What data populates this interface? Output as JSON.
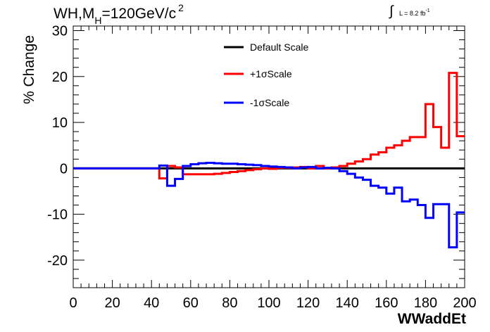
{
  "chart_data": {
    "type": "line",
    "title_text": "WH,M",
    "title_sub": "H",
    "title_rest": "=120GeV/c",
    "title_sup": "2",
    "lumi_text": "L = 8.2 fb",
    "lumi_sup": "-1",
    "xlabel": "WWaddEt",
    "ylabel": "% Change",
    "xlim": [
      0,
      200
    ],
    "ylim": [
      -26,
      31
    ],
    "xticks": [
      0,
      20,
      40,
      60,
      80,
      100,
      120,
      140,
      160,
      180,
      200
    ],
    "yticks": [
      -20,
      -10,
      0,
      10,
      20,
      30
    ],
    "grid": false,
    "legend_position": "top-center",
    "x_edges": [
      0,
      4,
      8,
      12,
      16,
      20,
      24,
      28,
      32,
      36,
      40,
      44,
      48,
      52,
      56,
      60,
      64,
      68,
      72,
      76,
      80,
      84,
      88,
      92,
      96,
      100,
      104,
      108,
      112,
      116,
      120,
      124,
      128,
      132,
      136,
      140,
      144,
      148,
      152,
      156,
      160,
      164,
      168,
      172,
      176,
      180,
      184,
      188,
      192,
      196,
      200
    ],
    "series": [
      {
        "name": "Default Scale",
        "color": "#000000",
        "values": [
          0,
          0,
          0,
          0,
          0,
          0,
          0,
          0,
          0,
          0,
          0,
          0,
          0,
          0,
          0,
          0,
          0,
          0,
          0,
          0,
          0,
          0,
          0,
          0,
          0,
          0,
          0,
          0,
          0,
          0,
          0,
          0,
          0,
          0,
          0,
          0,
          0,
          0,
          0,
          0,
          0,
          0,
          0,
          0,
          0,
          0,
          0,
          0,
          0,
          0
        ]
      },
      {
        "name": "+1σScale",
        "color": "#ff0000",
        "values": [
          0,
          0,
          0,
          0,
          0,
          0,
          0,
          0,
          0,
          0,
          0,
          -2.2,
          0.5,
          0.2,
          -1.3,
          -1.3,
          -1.3,
          -1.3,
          -1.2,
          -1.0,
          -0.8,
          -0.6,
          -0.4,
          -0.2,
          0,
          -0.1,
          0.1,
          0.1,
          0.2,
          0.3,
          0,
          0.5,
          0,
          0.2,
          0.5,
          1.0,
          1.5,
          2.0,
          3.0,
          3.5,
          4.5,
          5.0,
          6.0,
          6.8,
          6.8,
          14.0,
          9.0,
          4.5,
          20.8,
          7.0
        ]
      },
      {
        "name": "-1σScale",
        "color": "#0000ff",
        "values": [
          0,
          0,
          0,
          0,
          0,
          0,
          0,
          0,
          0,
          0,
          0,
          0.6,
          -3.8,
          -2.3,
          0.5,
          0.9,
          1.1,
          1.2,
          1.1,
          1.0,
          1.0,
          0.9,
          0.8,
          0.7,
          0.5,
          0.4,
          0.3,
          0.2,
          0,
          0.2,
          0.3,
          0,
          0.1,
          0,
          -0.6,
          -1.2,
          -2.0,
          -2.5,
          -3.8,
          -4.2,
          -5.5,
          -4.2,
          -7.2,
          -6.8,
          -8.0,
          -10.8,
          -7.8,
          -7.8,
          -17.2,
          -9.6
        ]
      }
    ]
  }
}
